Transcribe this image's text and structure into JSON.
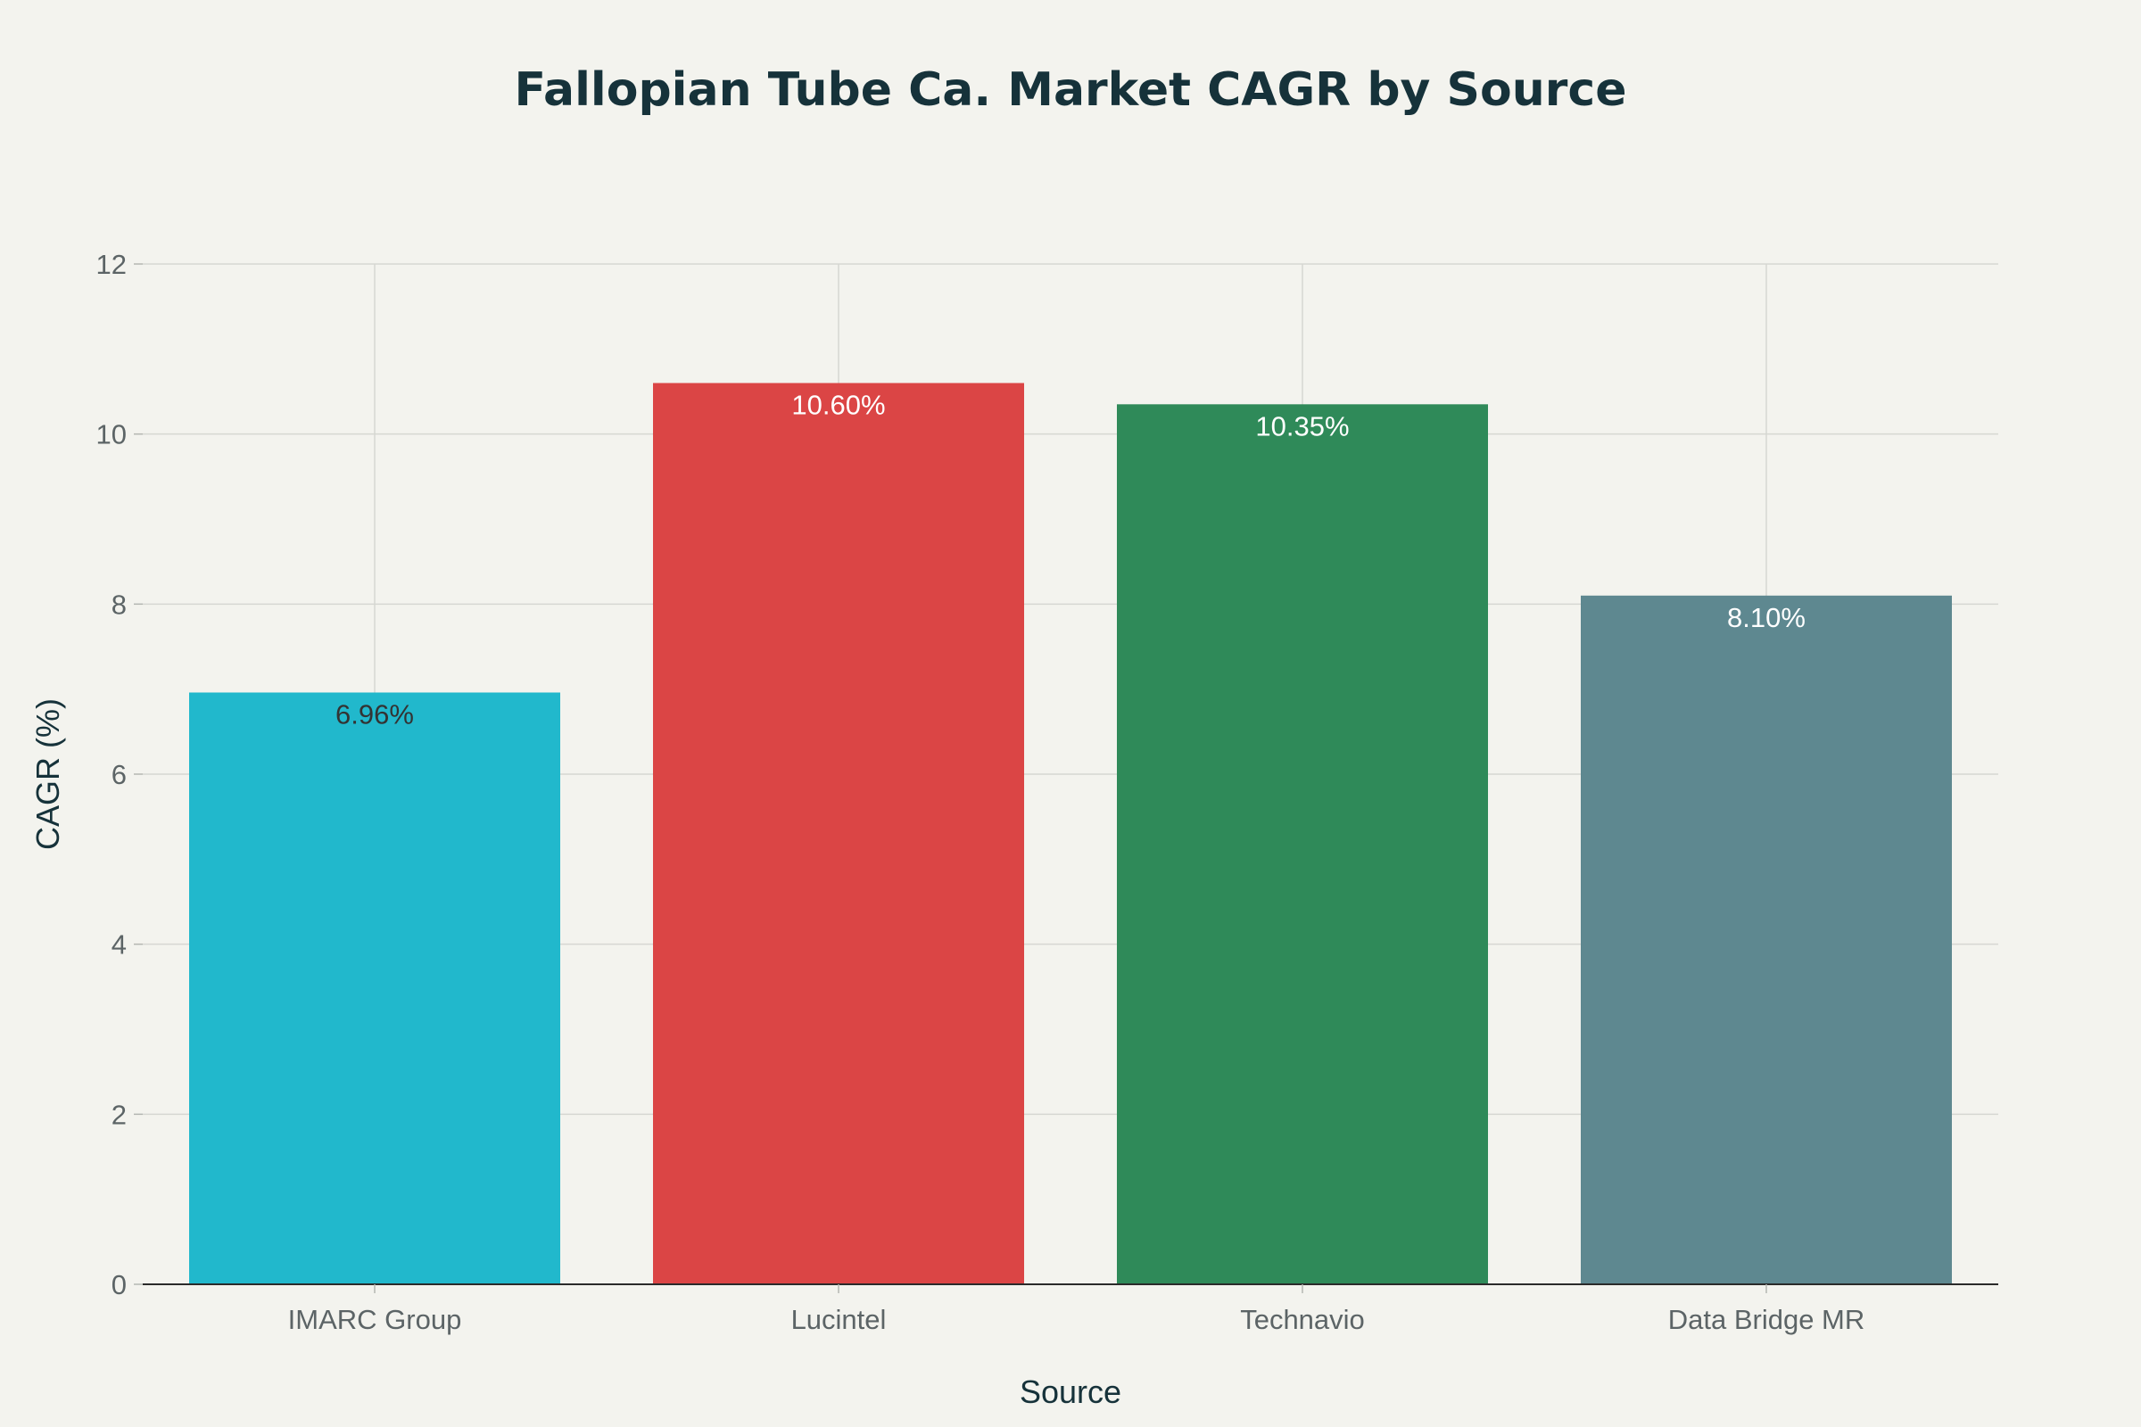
{
  "chart_data": {
    "type": "bar",
    "title": "Fallopian Tube Ca. Market CAGR by Source",
    "xlabel": "Source",
    "ylabel": "CAGR (%)",
    "categories": [
      "IMARC Group",
      "Lucintel",
      "Technavio",
      "Data Bridge MR"
    ],
    "values": [
      6.96,
      10.6,
      10.35,
      8.1
    ],
    "data_labels": [
      "6.96%",
      "10.60%",
      "10.35%",
      "8.10%"
    ],
    "bar_colors": [
      "#21b8cc",
      "#db4545",
      "#2f8a59",
      "#5e8890"
    ],
    "label_colors": [
      "#333333",
      "#ffffff",
      "#ffffff",
      "#ffffff"
    ],
    "ylim": [
      0,
      12
    ],
    "yticks": [
      0,
      2,
      4,
      6,
      8,
      10,
      12
    ],
    "grid": true,
    "legend": "none"
  }
}
